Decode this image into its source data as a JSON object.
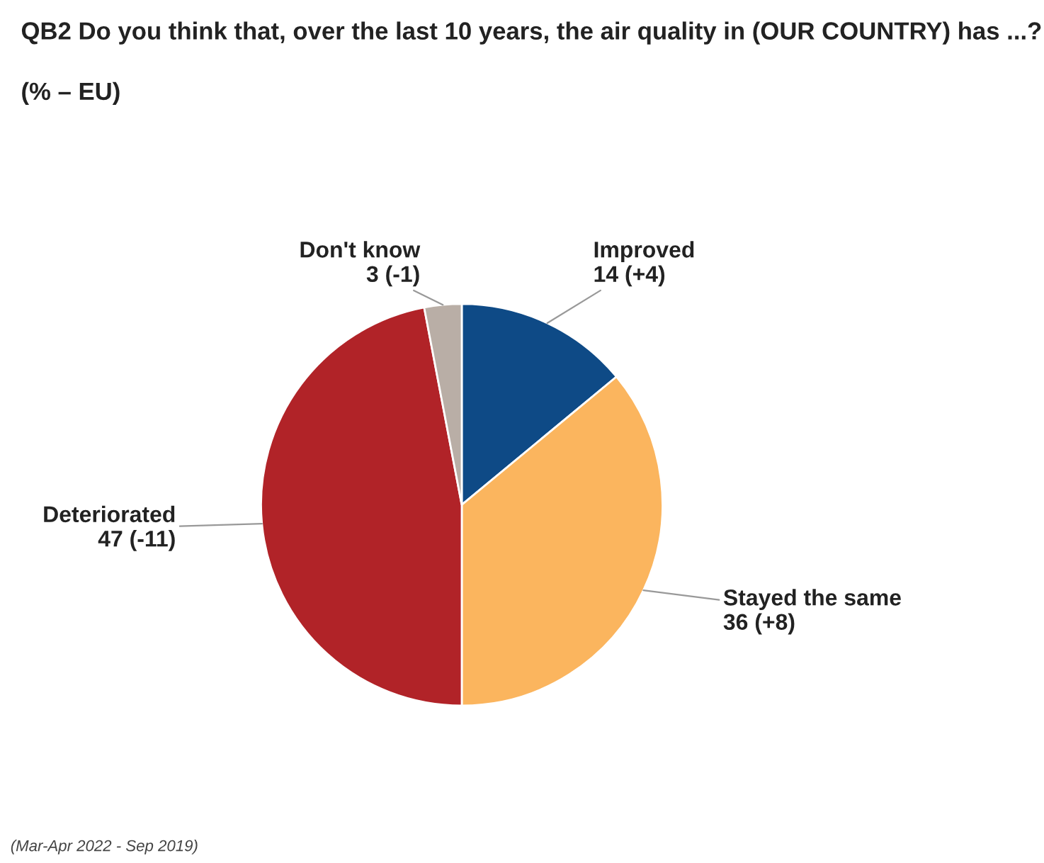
{
  "chart_data": {
    "type": "pie",
    "title": "QB2 Do you think that, over the last 10 years, the air quality in (OUR COUNTRY) has ...?",
    "subtitle": "(% – EU)",
    "categories": [
      "Improved",
      "Stayed the same",
      "Deteriorated",
      "Don't know"
    ],
    "values": [
      14,
      36,
      47,
      3
    ],
    "value_labels": [
      "14 (+4)",
      "36 (+8)",
      "47 (-11)",
      "3 (-1)"
    ],
    "colors": [
      "#0e4a86",
      "#fbb55e",
      "#b12328",
      "#b9aea6"
    ],
    "annotations": [
      "(Mar-Apr 2022 - Sep 2019)"
    ],
    "legend": false
  }
}
